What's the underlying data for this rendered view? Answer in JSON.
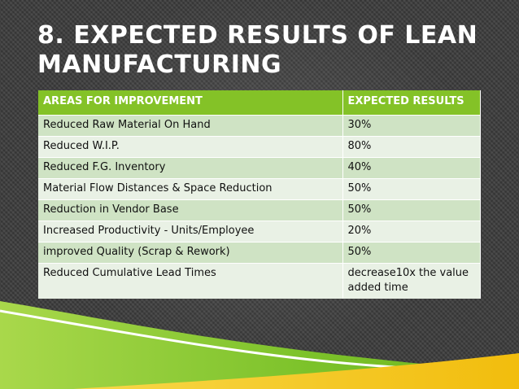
{
  "slide": {
    "title": "8.  EXPECTED RESULTS OF LEAN MANUFACTURING"
  },
  "table": {
    "headers": [
      "AREAS FOR IMPROVEMENT",
      "EXPECTED RESULTS"
    ],
    "rows": [
      {
        "area": "Reduced Raw Material On Hand",
        "result": "30%"
      },
      {
        "area": "Reduced W.I.P.",
        "result": "80%"
      },
      {
        "area": "Reduced F.G. Inventory",
        "result": "40%"
      },
      {
        "area": "Material Flow Distances & Space Reduction",
        "result": "50%"
      },
      {
        "area": "Reduction in Vendor Base",
        "result": "50%"
      },
      {
        "area": "Increased Productivity - Units/Employee",
        "result": "20%"
      },
      {
        "area": "improved Quality (Scrap & Rework)",
        "result": "50%"
      },
      {
        "area": "Reduced Cumulative Lead Times",
        "result": "decrease10x the value added time"
      }
    ]
  },
  "colors": {
    "header_green": "#84c227",
    "row_odd": "#cfe3c4",
    "row_even": "#e9f1e5",
    "swoosh_green": "#7cc22a",
    "swoosh_yellow": "#f4c617",
    "background": "#3a3a3a"
  }
}
